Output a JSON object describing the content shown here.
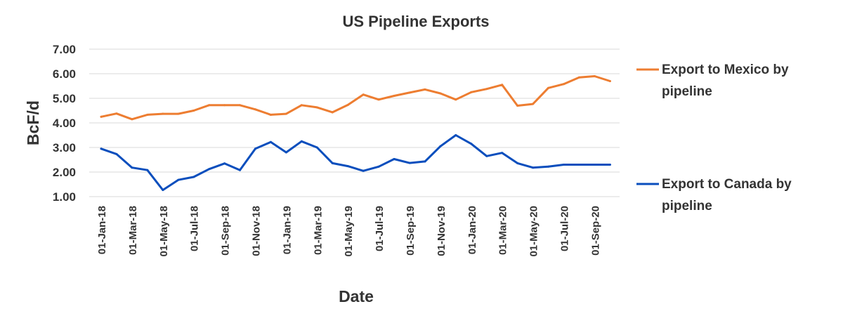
{
  "chart_data": {
    "type": "line",
    "title": "US Pipeline Exports",
    "xlabel": "Date",
    "ylabel": "BcF/d",
    "ylim": [
      1.0,
      7.0
    ],
    "yticks": [
      "1.00",
      "2.00",
      "3.00",
      "4.00",
      "5.00",
      "6.00",
      "7.00"
    ],
    "grid": true,
    "legend_position": "right",
    "x": [
      "Jan-18",
      "Feb-18",
      "Mar-18",
      "Apr-18",
      "May-18",
      "Jun-18",
      "Jul-18",
      "Aug-18",
      "Sep-18",
      "Oct-18",
      "Nov-18",
      "Dec-18",
      "Jan-19",
      "Feb-19",
      "Mar-19",
      "Apr-19",
      "May-19",
      "Jun-19",
      "Jul-19",
      "Aug-19",
      "Sep-19",
      "Oct-19",
      "Nov-19",
      "Dec-19",
      "Jan-20",
      "Feb-20",
      "Mar-20",
      "Apr-20",
      "May-20",
      "Jun-20",
      "Jul-20",
      "Aug-20",
      "Sep-20",
      "Oct-20"
    ],
    "xtick_labels": [
      "01-Jan-18",
      "01-Mar-18",
      "01-May-18",
      "01-Jul-18",
      "01-Sep-18",
      "01-Nov-18",
      "01-Jan-19",
      "01-Mar-19",
      "01-May-19",
      "01-Jul-19",
      "01-Sep-19",
      "01-Nov-19",
      "01-Jan-20",
      "01-Mar-20",
      "01-May-20",
      "01-Jul-20",
      "01-Sep-20"
    ],
    "series": [
      {
        "name": "Export to Mexico by pipeline",
        "legend_lines": [
          "Export to Mexico by",
          "pipeline"
        ],
        "color": "#ed7d31",
        "values": [
          4.25,
          4.38,
          4.15,
          4.33,
          4.37,
          4.37,
          4.5,
          4.72,
          4.72,
          4.72,
          4.55,
          4.33,
          4.37,
          4.72,
          4.63,
          4.43,
          4.73,
          5.15,
          4.95,
          5.1,
          5.23,
          5.36,
          5.2,
          4.95,
          5.25,
          5.38,
          5.55,
          4.7,
          4.77,
          5.42,
          5.58,
          5.85,
          5.9,
          5.7
        ]
      },
      {
        "name": "Export to Canada by pipeline",
        "legend_lines": [
          "Export to Canada by",
          "pipeline"
        ],
        "color": "#0a4ebd",
        "values": [
          2.95,
          2.73,
          2.18,
          2.08,
          1.27,
          1.68,
          1.8,
          2.12,
          2.35,
          2.08,
          2.95,
          3.22,
          2.8,
          3.25,
          3.0,
          2.36,
          2.24,
          2.05,
          2.22,
          2.53,
          2.37,
          2.43,
          3.05,
          3.5,
          3.15,
          2.65,
          2.78,
          2.36,
          2.18,
          2.22,
          2.3,
          2.3,
          2.3,
          2.3
        ]
      }
    ]
  }
}
